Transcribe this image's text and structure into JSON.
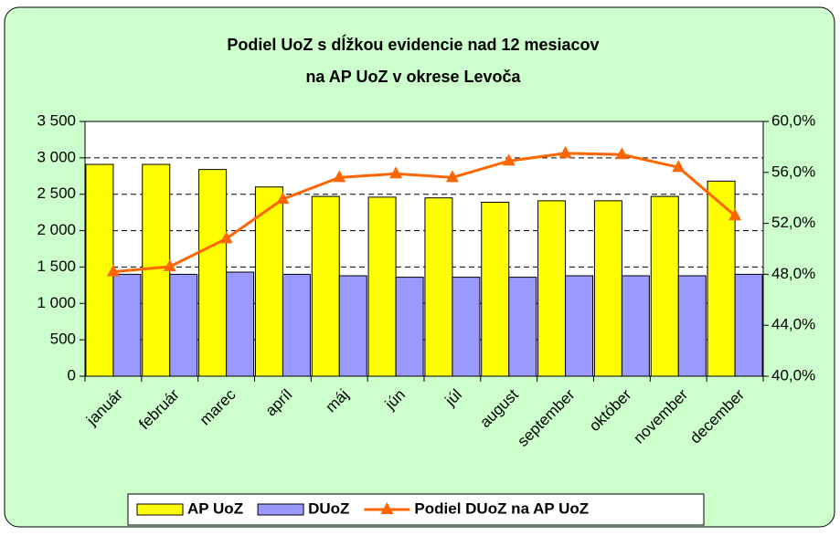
{
  "chart_data": {
    "type": "bar_line",
    "title": [
      "Podiel UoZ s dĺžkou evidencie nad 12 mesiacov",
      "na AP UoZ v okrese Levoča"
    ],
    "categories": [
      "január",
      "február",
      "marec",
      "apríl",
      "máj",
      "jún",
      "júl",
      "august",
      "september",
      "október",
      "november",
      "december"
    ],
    "series": [
      {
        "name": "AP UoZ",
        "color": "#ffff00",
        "values": [
          2910,
          2910,
          2840,
          2600,
          2470,
          2460,
          2450,
          2390,
          2410,
          2410,
          2470,
          2680
        ]
      },
      {
        "name": "DUoZ",
        "color": "#9999ff",
        "values": [
          1400,
          1400,
          1430,
          1400,
          1380,
          1360,
          1360,
          1360,
          1380,
          1380,
          1380,
          1400
        ]
      },
      {
        "name": "Podiel DUoZ na AP UoZ",
        "color": "#ff6600",
        "axis": "y2",
        "values": [
          48.2,
          48.6,
          50.8,
          53.9,
          55.6,
          55.9,
          55.6,
          56.9,
          57.5,
          57.4,
          56.4,
          52.6
        ]
      }
    ],
    "ylim": [
      0,
      3500
    ],
    "yticks": [
      0,
      500,
      {
        "value": 1000,
        "label": "1 000"
      },
      {
        "value": 1500,
        "label": "1 500"
      },
      {
        "value": 2000,
        "label": "2 000"
      },
      {
        "value": 2500,
        "label": "2 500"
      },
      {
        "value": 3000,
        "label": "3 000"
      },
      {
        "value": 3500,
        "label": "3 500"
      }
    ],
    "y2lim": [
      40,
      60
    ],
    "y2ticks": [
      {
        "value": 40,
        "label": "40,0%"
      },
      {
        "value": 44,
        "label": "44,0%"
      },
      {
        "value": 48,
        "label": "48,0%"
      },
      {
        "value": 52,
        "label": "52,0%"
      },
      {
        "value": 56,
        "label": "56,0%"
      },
      {
        "value": 60,
        "label": "60,0%"
      }
    ],
    "grid": true,
    "legend": "bottom"
  }
}
